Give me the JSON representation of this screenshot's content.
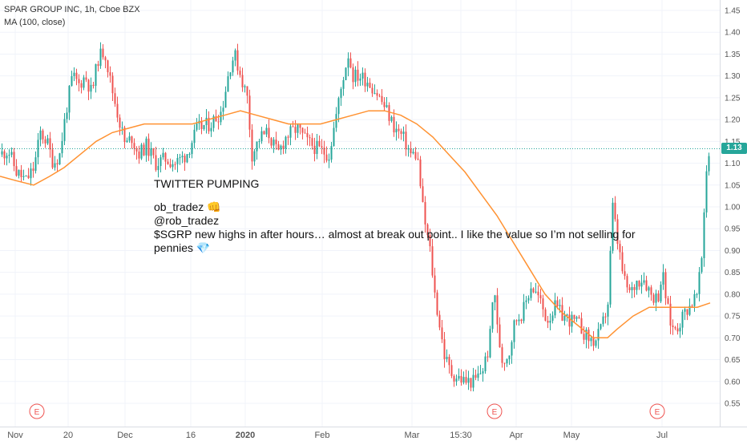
{
  "legend": {
    "symbol_line": "SPAR GROUP INC, 1h, Cboe BZX",
    "ma_line": "MA (100, close)"
  },
  "annotation": {
    "title": "TWITTER PUMPING",
    "user_line": "ob_tradez 👊",
    "handle": "@rob_tradez",
    "message_1": "$SGRP new highs in after hours… almost at break out point.. I like the value so I’m not selling for",
    "message_2": "pennies 💎"
  },
  "current_price_label": "1.13",
  "earnings_marker": "E",
  "colors": {
    "up": "#26a69a",
    "down": "#ef5350",
    "ma": "#ff9232",
    "price_line": "#26a69a",
    "axis_text": "#555555",
    "grid": "#f0f3fa"
  },
  "chart_data": {
    "type": "candlestick",
    "symbol": "SPAR GROUP INC",
    "interval": "1h",
    "exchange": "Cboe BZX",
    "indicator": "MA (100, close)",
    "ylim": [
      0.52,
      1.47
    ],
    "y_ticks": [
      0.55,
      0.6,
      0.65,
      0.7,
      0.75,
      0.8,
      0.85,
      0.9,
      0.95,
      1.0,
      1.05,
      1.1,
      1.15,
      1.2,
      1.25,
      1.3,
      1.35,
      1.4,
      1.45
    ],
    "x_ticks": [
      "Nov",
      "20",
      "Dec",
      "16",
      "2020",
      "Feb",
      "Mar",
      "15:30",
      "Apr",
      "May",
      "Jul"
    ],
    "last_price": 1.13,
    "earnings_events": 3,
    "close_path": [
      [
        0,
        1.12
      ],
      [
        10,
        1.13
      ],
      [
        20,
        1.08
      ],
      [
        32,
        1.06
      ],
      [
        42,
        1.09
      ],
      [
        50,
        1.17
      ],
      [
        58,
        1.15
      ],
      [
        66,
        1.1
      ],
      [
        74,
        1.12
      ],
      [
        82,
        1.22
      ],
      [
        90,
        1.3
      ],
      [
        98,
        1.28
      ],
      [
        106,
        1.3
      ],
      [
        114,
        1.26
      ],
      [
        122,
        1.34
      ],
      [
        130,
        1.36
      ],
      [
        138,
        1.28
      ],
      [
        148,
        1.2
      ],
      [
        156,
        1.14
      ],
      [
        164,
        1.16
      ],
      [
        172,
        1.12
      ],
      [
        182,
        1.14
      ],
      [
        194,
        1.1
      ],
      [
        206,
        1.11
      ],
      [
        218,
        1.1
      ],
      [
        232,
        1.12
      ],
      [
        246,
        1.18
      ],
      [
        262,
        1.19
      ],
      [
        276,
        1.22
      ],
      [
        286,
        1.32
      ],
      [
        292,
        1.35
      ],
      [
        300,
        1.3
      ],
      [
        308,
        1.25
      ],
      [
        314,
        1.12
      ],
      [
        324,
        1.16
      ],
      [
        334,
        1.17
      ],
      [
        346,
        1.12
      ],
      [
        356,
        1.16
      ],
      [
        370,
        1.18
      ],
      [
        382,
        1.15
      ],
      [
        398,
        1.13
      ],
      [
        410,
        1.12
      ],
      [
        420,
        1.22
      ],
      [
        428,
        1.3
      ],
      [
        434,
        1.35
      ],
      [
        440,
        1.3
      ],
      [
        448,
        1.3
      ],
      [
        458,
        1.29
      ],
      [
        470,
        1.26
      ],
      [
        482,
        1.22
      ],
      [
        492,
        1.18
      ],
      [
        502,
        1.16
      ],
      [
        512,
        1.12
      ],
      [
        520,
        1.12
      ],
      [
        528,
        0.98
      ],
      [
        536,
        0.9
      ],
      [
        542,
        0.8
      ],
      [
        548,
        0.73
      ],
      [
        554,
        0.66
      ],
      [
        562,
        0.62
      ],
      [
        570,
        0.61
      ],
      [
        580,
        0.6
      ],
      [
        592,
        0.6
      ],
      [
        602,
        0.63
      ],
      [
        610,
        0.68
      ],
      [
        616,
        0.83
      ],
      [
        620,
        0.72
      ],
      [
        626,
        0.65
      ],
      [
        634,
        0.66
      ],
      [
        642,
        0.74
      ],
      [
        652,
        0.76
      ],
      [
        662,
        0.82
      ],
      [
        672,
        0.79
      ],
      [
        682,
        0.74
      ],
      [
        692,
        0.77
      ],
      [
        702,
        0.75
      ],
      [
        712,
        0.74
      ],
      [
        722,
        0.73
      ],
      [
        732,
        0.7
      ],
      [
        742,
        0.69
      ],
      [
        750,
        0.72
      ],
      [
        758,
        0.78
      ],
      [
        764,
        1.0
      ],
      [
        770,
        0.92
      ],
      [
        778,
        0.83
      ],
      [
        786,
        0.8
      ],
      [
        794,
        0.83
      ],
      [
        802,
        0.84
      ],
      [
        812,
        0.8
      ],
      [
        820,
        0.79
      ],
      [
        826,
        0.85
      ],
      [
        832,
        0.77
      ],
      [
        838,
        0.72
      ],
      [
        846,
        0.73
      ],
      [
        854,
        0.76
      ],
      [
        862,
        0.78
      ],
      [
        870,
        0.8
      ],
      [
        876,
        0.9
      ],
      [
        880,
        1.08
      ],
      [
        884,
        1.12
      ],
      [
        886,
        1.13
      ]
    ],
    "ma_path": [
      [
        0,
        1.07
      ],
      [
        20,
        1.06
      ],
      [
        42,
        1.05
      ],
      [
        62,
        1.07
      ],
      [
        80,
        1.09
      ],
      [
        100,
        1.12
      ],
      [
        120,
        1.15
      ],
      [
        140,
        1.17
      ],
      [
        160,
        1.18
      ],
      [
        180,
        1.19
      ],
      [
        200,
        1.19
      ],
      [
        220,
        1.19
      ],
      [
        240,
        1.19
      ],
      [
        260,
        1.2
      ],
      [
        280,
        1.21
      ],
      [
        300,
        1.22
      ],
      [
        320,
        1.21
      ],
      [
        340,
        1.2
      ],
      [
        360,
        1.19
      ],
      [
        380,
        1.19
      ],
      [
        400,
        1.19
      ],
      [
        420,
        1.2
      ],
      [
        440,
        1.21
      ],
      [
        460,
        1.22
      ],
      [
        480,
        1.22
      ],
      [
        500,
        1.21
      ],
      [
        520,
        1.19
      ],
      [
        540,
        1.16
      ],
      [
        560,
        1.12
      ],
      [
        580,
        1.08
      ],
      [
        600,
        1.03
      ],
      [
        620,
        0.98
      ],
      [
        640,
        0.92
      ],
      [
        660,
        0.86
      ],
      [
        680,
        0.8
      ],
      [
        700,
        0.76
      ],
      [
        720,
        0.73
      ],
      [
        740,
        0.7
      ],
      [
        758,
        0.7
      ],
      [
        770,
        0.72
      ],
      [
        790,
        0.75
      ],
      [
        810,
        0.77
      ],
      [
        830,
        0.77
      ],
      [
        850,
        0.77
      ],
      [
        870,
        0.77
      ],
      [
        886,
        0.78
      ]
    ]
  }
}
